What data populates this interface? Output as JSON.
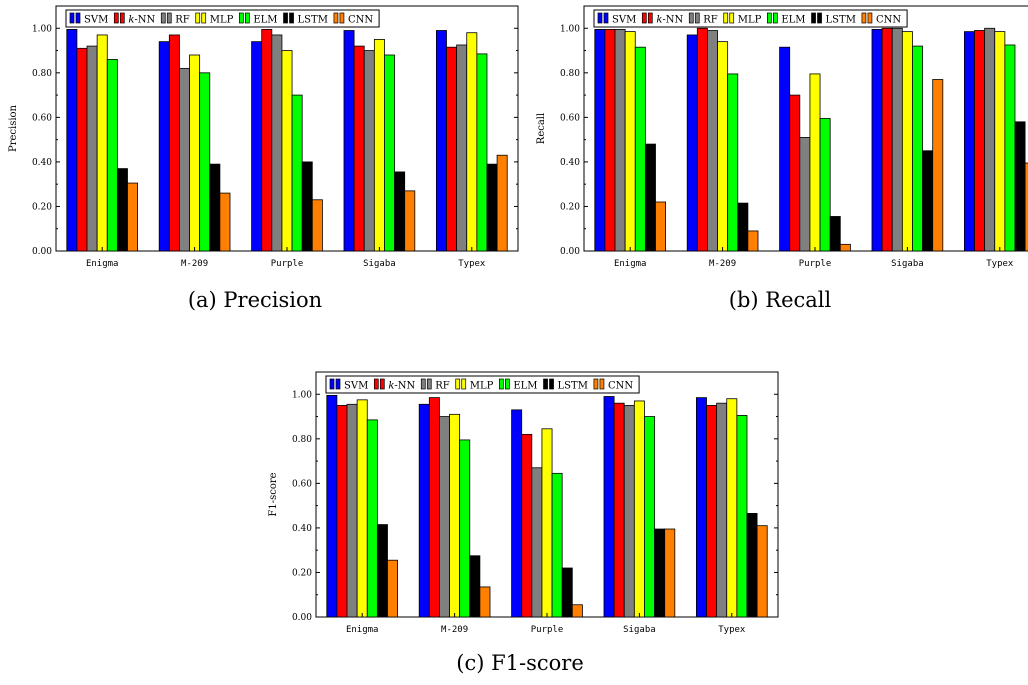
{
  "figure": {
    "series_colors": {
      "SVM": "#0000ff",
      "k-NN": "#ff0000",
      "RF": "#808080",
      "MLP": "#ffff00",
      "ELM": "#00ff00",
      "LSTM": "#000000",
      "CNN": "#ff8000"
    }
  },
  "chart_data": [
    {
      "type": "bar",
      "caption": "(a) Precision",
      "ylabel": "Precision",
      "xlabel": "",
      "ylim": [
        0,
        1.1
      ],
      "yticks": [
        "0.00",
        "0.20",
        "0.40",
        "0.60",
        "0.80",
        "1.00"
      ],
      "legend_position": "top",
      "categories": [
        "Enigma",
        "M-209",
        "Purple",
        "Sigaba",
        "Typex"
      ],
      "series": [
        {
          "name": "SVM",
          "values": [
            0.995,
            0.94,
            0.94,
            0.99,
            0.99
          ]
        },
        {
          "name": "k-NN",
          "values": [
            0.91,
            0.97,
            0.995,
            0.92,
            0.915
          ]
        },
        {
          "name": "RF",
          "values": [
            0.92,
            0.82,
            0.97,
            0.9,
            0.925
          ]
        },
        {
          "name": "MLP",
          "values": [
            0.97,
            0.88,
            0.9,
            0.95,
            0.98
          ]
        },
        {
          "name": "ELM",
          "values": [
            0.86,
            0.8,
            0.7,
            0.88,
            0.885
          ]
        },
        {
          "name": "LSTM",
          "values": [
            0.37,
            0.39,
            0.4,
            0.355,
            0.39
          ]
        },
        {
          "name": "CNN",
          "values": [
            0.305,
            0.26,
            0.23,
            0.27,
            0.43
          ]
        }
      ]
    },
    {
      "type": "bar",
      "caption": "(b) Recall",
      "ylabel": "Recall",
      "xlabel": "",
      "ylim": [
        0,
        1.1
      ],
      "yticks": [
        "0.00",
        "0.20",
        "0.40",
        "0.60",
        "0.80",
        "1.00"
      ],
      "legend_position": "top",
      "categories": [
        "Enigma",
        "M-209",
        "Purple",
        "Sigaba",
        "Typex"
      ],
      "series": [
        {
          "name": "SVM",
          "values": [
            0.995,
            0.97,
            0.915,
            0.995,
            0.985
          ]
        },
        {
          "name": "k-NN",
          "values": [
            0.995,
            1.0,
            0.7,
            1.0,
            0.99
          ]
        },
        {
          "name": "RF",
          "values": [
            0.995,
            0.99,
            0.51,
            1.0,
            1.0
          ]
        },
        {
          "name": "MLP",
          "values": [
            0.985,
            0.94,
            0.795,
            0.985,
            0.985
          ]
        },
        {
          "name": "ELM",
          "values": [
            0.915,
            0.795,
            0.595,
            0.92,
            0.925
          ]
        },
        {
          "name": "LSTM",
          "values": [
            0.48,
            0.215,
            0.155,
            0.45,
            0.58
          ]
        },
        {
          "name": "CNN",
          "values": [
            0.22,
            0.09,
            0.03,
            0.77,
            0.395
          ]
        }
      ]
    },
    {
      "type": "bar",
      "caption": "(c) F1-score",
      "ylabel": "F1-score",
      "xlabel": "",
      "ylim": [
        0,
        1.1
      ],
      "yticks": [
        "0.00",
        "0.20",
        "0.40",
        "0.60",
        "0.80",
        "1.00"
      ],
      "legend_position": "top",
      "categories": [
        "Enigma",
        "M-209",
        "Purple",
        "Sigaba",
        "Typex"
      ],
      "series": [
        {
          "name": "SVM",
          "values": [
            0.995,
            0.955,
            0.93,
            0.99,
            0.985
          ]
        },
        {
          "name": "k-NN",
          "values": [
            0.95,
            0.985,
            0.82,
            0.96,
            0.95
          ]
        },
        {
          "name": "RF",
          "values": [
            0.955,
            0.9,
            0.67,
            0.95,
            0.96
          ]
        },
        {
          "name": "MLP",
          "values": [
            0.975,
            0.91,
            0.845,
            0.97,
            0.98
          ]
        },
        {
          "name": "ELM",
          "values": [
            0.885,
            0.795,
            0.645,
            0.9,
            0.905
          ]
        },
        {
          "name": "LSTM",
          "values": [
            0.415,
            0.275,
            0.22,
            0.395,
            0.465
          ]
        },
        {
          "name": "CNN",
          "values": [
            0.255,
            0.135,
            0.055,
            0.395,
            0.41
          ]
        }
      ]
    }
  ]
}
